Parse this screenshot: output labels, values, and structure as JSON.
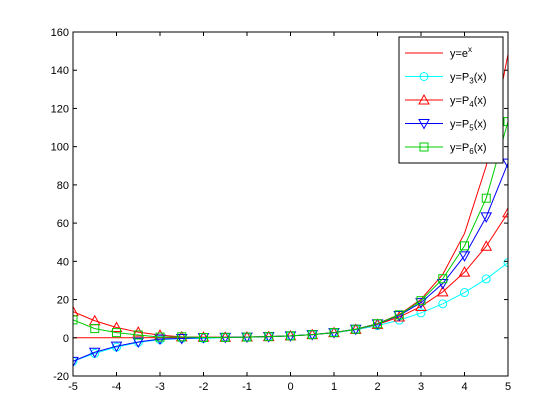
{
  "chart_data": {
    "type": "line",
    "title": "",
    "xlabel": "",
    "ylabel": "",
    "xlim": [
      -5,
      5
    ],
    "ylim": [
      -20,
      160
    ],
    "xticks": [
      -5,
      -4,
      -3,
      -2,
      -1,
      0,
      1,
      2,
      3,
      4,
      5
    ],
    "yticks": [
      -20,
      0,
      20,
      40,
      60,
      80,
      100,
      120,
      140,
      160
    ],
    "grid": false,
    "legend_position": "top-right",
    "x": [
      -5,
      -4.5,
      -4,
      -3.5,
      -3,
      -2.5,
      -2,
      -1.5,
      -1,
      -0.5,
      0,
      0.5,
      1,
      1.5,
      2,
      2.5,
      3,
      3.5,
      4,
      4.5,
      5
    ],
    "series": [
      {
        "name": "y=e^x",
        "legend": {
          "base": "y=e",
          "sup": "x",
          "tail": ""
        },
        "color": "#ff0000",
        "marker": "none",
        "values": [
          0.007,
          0.011,
          0.018,
          0.03,
          0.05,
          0.082,
          0.135,
          0.223,
          0.368,
          0.607,
          1.0,
          1.649,
          2.718,
          4.482,
          7.389,
          12.18,
          20.09,
          33.12,
          54.6,
          90.02,
          148.4
        ]
      },
      {
        "name": "y=P_3(x)",
        "legend": {
          "base": "y=P",
          "sub": "3",
          "tail": "(x)"
        },
        "color": "#00ffff",
        "marker": "circle",
        "values": [
          -12.33,
          -8.19,
          -4.87,
          -2.4,
          -1.0,
          -0.35,
          -0.33,
          0.06,
          0.33,
          0.6,
          1.0,
          1.65,
          2.67,
          4.19,
          6.33,
          9.23,
          13.0,
          17.77,
          23.67,
          30.81,
          39.33
        ]
      },
      {
        "name": "y=P_4(x)",
        "legend": {
          "base": "y=P",
          "sub": "4",
          "tail": "(x)"
        },
        "color": "#ff0000",
        "marker": "triangle-up",
        "values": [
          13.71,
          8.9,
          5.4,
          2.96,
          1.38,
          0.48,
          0.33,
          0.27,
          0.38,
          0.61,
          1.0,
          1.65,
          2.71,
          4.4,
          7.0,
          10.86,
          16.38,
          24.02,
          34.33,
          47.89,
          65.38
        ]
      },
      {
        "name": "y=P_5(x)",
        "legend": {
          "base": "y=P",
          "sub": "5",
          "tail": "(x)"
        },
        "color": "#0000ff",
        "marker": "triangle-down",
        "values": [
          -12.33,
          -7.58,
          -4.4,
          -2.2,
          -0.65,
          -0.35,
          0.07,
          0.21,
          0.37,
          0.61,
          1.0,
          1.65,
          2.72,
          4.46,
          7.27,
          11.67,
          18.4,
          28.4,
          42.87,
          63.27,
          91.42
        ]
      },
      {
        "name": "y=P_6(x)",
        "legend": {
          "base": "y=P",
          "sub": "6",
          "tail": "(x)"
        },
        "color": "#00cc00",
        "marker": "square",
        "values": [
          9.37,
          4.8,
          2.7,
          1.47,
          0.36,
          0.5,
          0.16,
          0.23,
          0.37,
          0.61,
          1.0,
          1.65,
          2.72,
          4.48,
          7.36,
          12.0,
          19.41,
          30.89,
          48.09,
          73.04,
          113.1
        ]
      }
    ]
  }
}
